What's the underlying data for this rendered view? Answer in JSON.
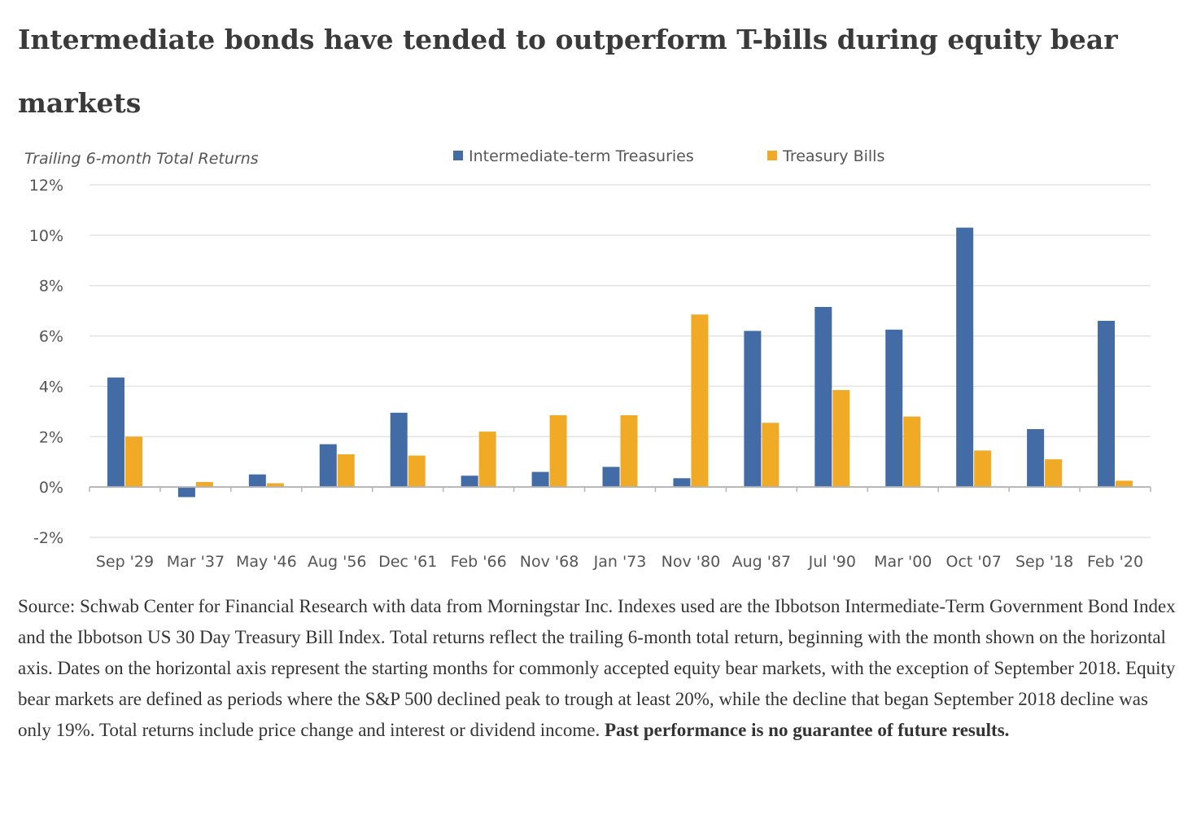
{
  "page": {
    "title": "Intermediate bonds have tended to outperform T-bills during equity bear markets",
    "source_text": "Source: Schwab Center for Financial Research with data from Morningstar Inc. Indexes used are the Ibbotson Intermediate-Term Government Bond Index and the Ibbotson US 30 Day Treasury Bill Index. Total returns reflect the trailing 6-month total return, beginning with the month shown on the horizontal axis. Dates on the horizontal axis represent the starting months for commonly accepted equity bear markets, with the exception of September 2018. Equity bear markets are defined as periods where the S&P 500 declined peak to trough at least 20%, while the decline that began September 2018 decline was only 19%. Total returns include price change and interest or dividend income.",
    "disclaimer": "Past performance is no guarantee of future results."
  },
  "chart_data": {
    "type": "bar",
    "title": "Intermediate bonds have tended to outperform T-bills during equity bear markets",
    "subtitle": "Trailing 6-month Total Returns",
    "xlabel": "",
    "ylabel": "Trailing 6-month Total Returns",
    "categories": [
      "Sep '29",
      "Mar '37",
      "May '46",
      "Aug '56",
      "Dec '61",
      "Feb '66",
      "Nov '68",
      "Jan '73",
      "Nov '80",
      "Aug '87",
      "Jul '90",
      "Mar '00",
      "Oct '07",
      "Sep '18",
      "Feb '20"
    ],
    "series": [
      {
        "name": "Intermediate-term Treasuries",
        "color": "#436ba6",
        "values": [
          4.35,
          -0.4,
          0.5,
          1.7,
          2.95,
          0.45,
          0.6,
          0.8,
          0.35,
          6.2,
          7.15,
          6.25,
          10.3,
          2.3,
          6.6
        ]
      },
      {
        "name": "Treasury Bills",
        "color": "#f0aa26",
        "values": [
          2.0,
          0.2,
          0.15,
          1.3,
          1.25,
          2.2,
          2.85,
          2.85,
          6.85,
          2.55,
          3.85,
          2.8,
          1.45,
          1.1,
          0.25
        ]
      }
    ],
    "yticks": [
      12,
      10,
      8,
      6,
      4,
      2,
      0,
      -2
    ],
    "ytick_labels": [
      "12%",
      "10%",
      "8%",
      "6%",
      "4%",
      "2%",
      "0%",
      "-2%"
    ],
    "ylim": [
      -2,
      12
    ],
    "grid": true,
    "legend_position": "top-center"
  }
}
